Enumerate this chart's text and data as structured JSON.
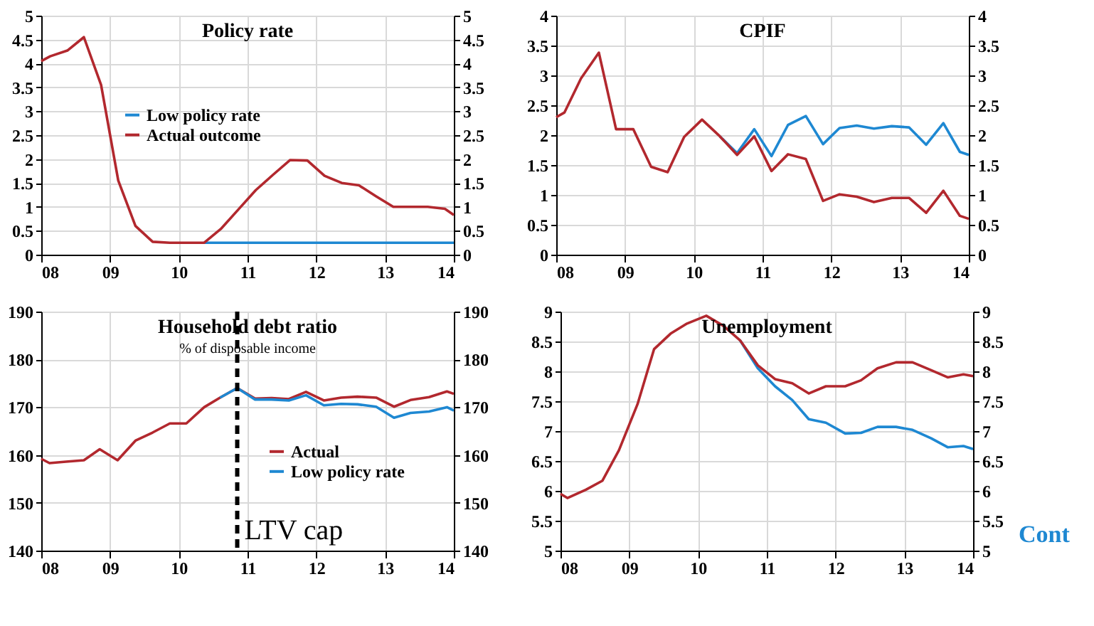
{
  "chart_data": [
    {
      "type": "line",
      "title": "Policy rate",
      "xlim": [
        2008,
        2014
      ],
      "xticks": [
        {
          "value": 2008,
          "label": "08"
        },
        {
          "value": 2009,
          "label": "09"
        },
        {
          "value": 2010,
          "label": "10"
        },
        {
          "value": 2011,
          "label": "11"
        },
        {
          "value": 2012,
          "label": "12"
        },
        {
          "value": 2013,
          "label": "13"
        },
        {
          "value": 2014,
          "label": "14"
        }
      ],
      "ylim": [
        0,
        5
      ],
      "yticks": [
        0,
        0.5,
        1,
        1.5,
        2,
        2.5,
        3,
        3.5,
        4,
        4.5,
        5
      ],
      "y2lim": [
        0,
        5
      ],
      "y2ticks": [
        0,
        0.5,
        1,
        1.5,
        2,
        2.5,
        3,
        3.5,
        4,
        4.5,
        5
      ],
      "grid": true,
      "legend": "center",
      "marker": "none",
      "line_style": "solid",
      "series": [
        {
          "name": "Low policy rate",
          "color": "#1e88d2",
          "x": [
            2010.37,
            2010.62,
            2010.87,
            2011.12,
            2011.37,
            2011.62,
            2011.87,
            2012.12,
            2012.37,
            2012.62,
            2012.87,
            2013.12,
            2013.37,
            2013.62,
            2013.87,
            2014.0
          ],
          "values": [
            0.25,
            0.25,
            0.25,
            0.25,
            0.25,
            0.25,
            0.25,
            0.25,
            0.25,
            0.25,
            0.25,
            0.25,
            0.25,
            0.25,
            0.25,
            0.25
          ]
        },
        {
          "name": "Actual outcome",
          "color": "#b2282e",
          "x": [
            2008.0,
            2008.13,
            2008.38,
            2008.62,
            2008.87,
            2009.12,
            2009.37,
            2009.62,
            2009.87,
            2010.12,
            2010.37,
            2010.62,
            2010.87,
            2011.12,
            2011.37,
            2011.62,
            2011.87,
            2012.12,
            2012.37,
            2012.62,
            2012.87,
            2013.12,
            2013.37,
            2013.62,
            2013.87,
            2014.0
          ],
          "values": [
            4.05,
            4.15,
            4.27,
            4.55,
            3.55,
            1.55,
            0.6,
            0.27,
            0.25,
            0.25,
            0.25,
            0.55,
            0.95,
            1.35,
            1.67,
            1.98,
            1.97,
            1.65,
            1.5,
            1.45,
            1.22,
            1.0,
            1.0,
            1.0,
            0.96,
            0.83
          ]
        }
      ]
    },
    {
      "type": "line",
      "title": "CPIF",
      "xlim": [
        2008,
        2014
      ],
      "xticks": [
        {
          "value": 2008,
          "label": "08"
        },
        {
          "value": 2009,
          "label": "09"
        },
        {
          "value": 2010,
          "label": "10"
        },
        {
          "value": 2011,
          "label": "11"
        },
        {
          "value": 2012,
          "label": "12"
        },
        {
          "value": 2013,
          "label": "13"
        },
        {
          "value": 2014,
          "label": "14"
        }
      ],
      "ylim": [
        0,
        4
      ],
      "yticks": [
        0,
        0.5,
        1,
        1.5,
        2,
        2.5,
        3,
        3.5,
        4
      ],
      "y2lim": [
        0,
        4
      ],
      "y2ticks": [
        0,
        0.5,
        1,
        1.5,
        2,
        2.5,
        3,
        3.5,
        4
      ],
      "grid": true,
      "marker": "none",
      "line_style": "solid",
      "series": [
        {
          "color": "#1e88d2",
          "x": [
            2010.38,
            2010.63,
            2010.88,
            2011.13,
            2011.37,
            2011.63,
            2011.88,
            2012.12,
            2012.37,
            2012.62,
            2012.88,
            2013.13,
            2013.38,
            2013.63,
            2013.87,
            2014.0
          ],
          "values": [
            1.98,
            1.7,
            2.1,
            1.65,
            2.17,
            2.32,
            1.85,
            2.12,
            2.16,
            2.11,
            2.15,
            2.13,
            1.84,
            2.2,
            1.72,
            1.67
          ]
        },
        {
          "color": "#b2282e",
          "x": [
            2008.0,
            2008.12,
            2008.36,
            2008.62,
            2008.87,
            2009.12,
            2009.38,
            2009.62,
            2009.86,
            2010.12,
            2010.38,
            2010.63,
            2010.88,
            2011.13,
            2011.37,
            2011.63,
            2011.88,
            2012.12,
            2012.37,
            2012.62,
            2012.88,
            2013.13,
            2013.38,
            2013.63,
            2013.87,
            2014.0
          ],
          "values": [
            2.3,
            2.38,
            2.95,
            3.38,
            2.1,
            2.1,
            1.47,
            1.38,
            1.97,
            2.26,
            1.98,
            1.67,
            1.98,
            1.4,
            1.68,
            1.6,
            0.9,
            1.01,
            0.97,
            0.88,
            0.95,
            0.95,
            0.7,
            1.07,
            0.65,
            0.6
          ]
        }
      ]
    },
    {
      "type": "line",
      "title": "Household debt ratio",
      "subtitle": "% of disposable income",
      "xlim": [
        2008,
        2014
      ],
      "xticks": [
        {
          "value": 2008,
          "label": "08"
        },
        {
          "value": 2009,
          "label": "09"
        },
        {
          "value": 2010,
          "label": "10"
        },
        {
          "value": 2011,
          "label": "11"
        },
        {
          "value": 2012,
          "label": "12"
        },
        {
          "value": 2013,
          "label": "13"
        },
        {
          "value": 2014,
          "label": "14"
        }
      ],
      "ylim": [
        140,
        190
      ],
      "yticks": [
        140,
        150,
        160,
        170,
        180,
        190
      ],
      "y2lim": [
        140,
        190
      ],
      "y2ticks": [
        140,
        150,
        160,
        170,
        180,
        190
      ],
      "grid": true,
      "legend": "right",
      "marker": "none",
      "line_style": "solid",
      "ref_lines": [
        {
          "axis": "x",
          "value": 2010.85,
          "label": "LTV cap",
          "color": "#000000",
          "line_style": "dashed"
        }
      ],
      "series": [
        {
          "name": "Actual",
          "color": "#b2282e",
          "x": [
            2008.0,
            2008.12,
            2008.36,
            2008.62,
            2008.85,
            2009.11,
            2009.37,
            2009.62,
            2009.87,
            2010.11,
            2010.37,
            2010.6,
            2010.85,
            2011.11,
            2011.35,
            2011.6,
            2011.85,
            2012.11,
            2012.36,
            2012.6,
            2012.87,
            2013.13,
            2013.37,
            2013.64,
            2013.9,
            2014.0
          ],
          "values": [
            159.2,
            158.3,
            158.6,
            158.9,
            161.2,
            158.9,
            163,
            164.7,
            166.6,
            166.6,
            170,
            172,
            174,
            171.8,
            171.9,
            171.7,
            173.2,
            171.4,
            172,
            172.2,
            172,
            170.1,
            171.5,
            172.1,
            173.3,
            172.8
          ]
        },
        {
          "name": "Low policy rate",
          "color": "#1e88d2",
          "x": [
            2010.6,
            2010.85,
            2011.11,
            2011.35,
            2011.6,
            2011.85,
            2012.11,
            2012.36,
            2012.6,
            2012.87,
            2013.13,
            2013.37,
            2013.64,
            2013.9,
            2014.0
          ],
          "values": [
            172,
            174,
            171.6,
            171.6,
            171.4,
            172.5,
            170.4,
            170.7,
            170.6,
            170.1,
            167.8,
            168.8,
            169.1,
            170,
            169.3
          ]
        }
      ]
    },
    {
      "type": "line",
      "title": "Unemployment",
      "xlim": [
        2008,
        2014
      ],
      "xticks": [
        {
          "value": 2008,
          "label": "08"
        },
        {
          "value": 2009,
          "label": "09"
        },
        {
          "value": 2010,
          "label": "10"
        },
        {
          "value": 2011,
          "label": "11"
        },
        {
          "value": 2012,
          "label": "12"
        },
        {
          "value": 2013,
          "label": "13"
        },
        {
          "value": 2014,
          "label": "14"
        }
      ],
      "ylim": [
        5,
        9
      ],
      "yticks": [
        5,
        5.5,
        6,
        6.5,
        7,
        7.5,
        8,
        8.5,
        9
      ],
      "y2lim": [
        5,
        9
      ],
      "y2ticks": [
        5,
        5.5,
        6,
        6.5,
        7,
        7.5,
        8,
        8.5,
        9
      ],
      "grid": true,
      "marker": "none",
      "line_style": "solid",
      "annotations": [
        "Cont"
      ],
      "series": [
        {
          "color": "#1e88d2",
          "x": [
            2010.61,
            2010.87,
            2011.12,
            2011.37,
            2011.61,
            2011.86,
            2012.14,
            2012.37,
            2012.61,
            2012.88,
            2013.12,
            2013.39,
            2013.63,
            2013.86,
            2014.0
          ],
          "values": [
            8.52,
            8.05,
            7.75,
            7.52,
            7.2,
            7.14,
            6.96,
            6.97,
            7.07,
            7.07,
            7.02,
            6.88,
            6.73,
            6.75,
            6.7
          ]
        },
        {
          "color": "#b2282e",
          "x": [
            2008.0,
            2008.1,
            2008.37,
            2008.61,
            2008.85,
            2009.12,
            2009.36,
            2009.6,
            2009.84,
            2010.12,
            2010.37,
            2010.61,
            2010.87,
            2011.12,
            2011.37,
            2011.61,
            2011.86,
            2012.14,
            2012.37,
            2012.61,
            2012.88,
            2013.12,
            2013.39,
            2013.63,
            2013.86,
            2014.0
          ],
          "values": [
            5.95,
            5.88,
            6.02,
            6.17,
            6.68,
            7.45,
            8.37,
            8.63,
            8.8,
            8.93,
            8.76,
            8.52,
            8.1,
            7.87,
            7.8,
            7.63,
            7.75,
            7.75,
            7.85,
            8.05,
            8.15,
            8.15,
            8.02,
            7.9,
            7.95,
            7.92
          ]
        }
      ]
    }
  ]
}
